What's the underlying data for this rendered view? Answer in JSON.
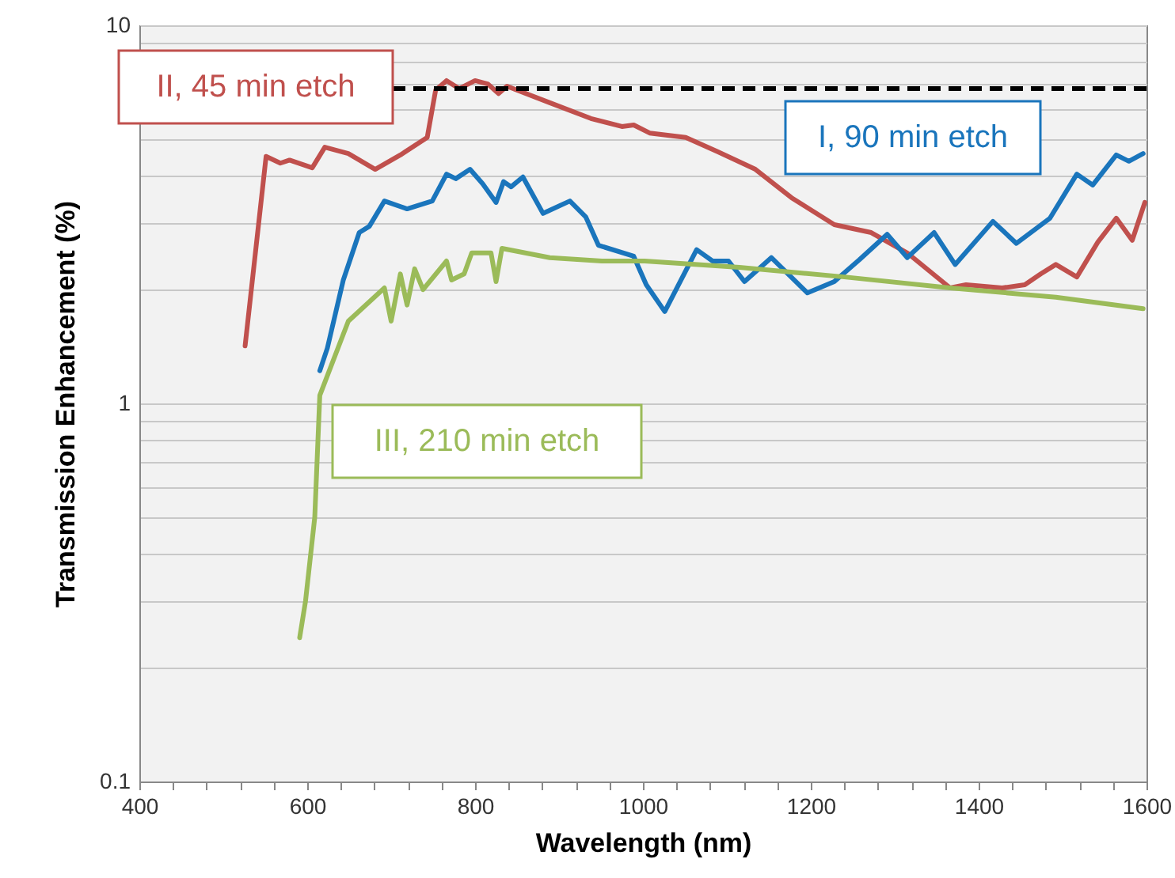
{
  "chart_data": {
    "type": "line",
    "xlabel": "Wavelength (nm)",
    "ylabel": "Transmission Enhancement (%)",
    "log": "y",
    "grid": "y",
    "line_style": "solid",
    "marker": "none",
    "xlim": [
      400,
      1600
    ],
    "xticks": [
      400,
      {
        "value": 440,
        "label": null
      },
      {
        "value": 480,
        "label": null
      },
      {
        "value": 520,
        "label": null
      },
      {
        "value": 560,
        "label": null
      },
      600,
      {
        "value": 640,
        "label": null
      },
      {
        "value": 680,
        "label": null
      },
      {
        "value": 720,
        "label": null
      },
      {
        "value": 760,
        "label": null
      },
      800,
      {
        "value": 840,
        "label": null
      },
      {
        "value": 880,
        "label": null
      },
      {
        "value": 920,
        "label": null
      },
      {
        "value": 960,
        "label": null
      },
      1000,
      {
        "value": 1040,
        "label": null
      },
      {
        "value": 1080,
        "label": null
      },
      {
        "value": 1120,
        "label": null
      },
      {
        "value": 1160,
        "label": null
      },
      1200,
      {
        "value": 1240,
        "label": null
      },
      {
        "value": 1280,
        "label": null
      },
      {
        "value": 1320,
        "label": null
      },
      {
        "value": 1360,
        "label": null
      },
      1400,
      {
        "value": 1440,
        "label": null
      },
      {
        "value": 1480,
        "label": null
      },
      {
        "value": 1520,
        "label": null
      },
      {
        "value": 1560,
        "label": null
      },
      1600
    ],
    "ylim": [
      0.1,
      10
    ],
    "yticks": [
      0.1,
      {
        "value": 0.2,
        "label": null
      },
      {
        "value": 0.3,
        "label": null
      },
      {
        "value": 0.4,
        "label": null
      },
      {
        "value": 0.5,
        "label": null
      },
      {
        "value": 0.6,
        "label": null
      },
      {
        "value": 0.7,
        "label": null
      },
      {
        "value": 0.8,
        "label": null
      },
      {
        "value": 0.9,
        "label": null
      },
      1,
      {
        "value": 2,
        "label": null
      },
      {
        "value": 3,
        "label": null
      },
      {
        "value": 4,
        "label": null
      },
      {
        "value": 5,
        "label": null
      },
      {
        "value": 6,
        "label": null
      },
      {
        "value": 7,
        "label": null
      },
      {
        "value": 8,
        "label": null
      },
      {
        "value": 9,
        "label": null
      },
      10
    ],
    "ref_lines": [
      {
        "axis": "y",
        "value": 6.8,
        "label": null,
        "color": "#000000",
        "line_style": "dashed"
      }
    ],
    "series": [
      {
        "name": "II, 45 min etch",
        "color": "#c0504d",
        "x": [
          526,
          551,
          568,
          579,
          606,
          621,
          649,
          681,
          711,
          743,
          753,
          766,
          781,
          800,
          815,
          828,
          838,
          889,
          938,
          975,
          989,
          1008,
          1051,
          1089,
          1134,
          1177,
          1228,
          1272,
          1315,
          1366,
          1385,
          1428,
          1455,
          1474,
          1492,
          1517,
          1542,
          1564,
          1583,
          1598
        ],
        "values": [
          1.42,
          4.5,
          4.32,
          4.4,
          4.2,
          4.76,
          4.58,
          4.16,
          4.54,
          5.05,
          6.74,
          7.14,
          6.8,
          7.14,
          7.0,
          6.6,
          6.9,
          6.24,
          5.67,
          5.4,
          5.45,
          5.19,
          5.05,
          4.63,
          4.16,
          3.5,
          2.97,
          2.83,
          2.5,
          2.02,
          2.06,
          2.02,
          2.06,
          2.2,
          2.33,
          2.16,
          2.67,
          3.09,
          2.7,
          3.4
        ]
      },
      {
        "name": "I,  90 min etch",
        "color": "#1a75bc",
        "x": [
          615,
          624,
          643,
          662,
          674,
          692,
          719,
          749,
          766,
          777,
          794,
          809,
          825,
          834,
          843,
          857,
          881,
          913,
          932,
          947,
          989,
          1004,
          1026,
          1064,
          1083,
          1102,
          1121,
          1153,
          1196,
          1228,
          1258,
          1291,
          1315,
          1347,
          1372,
          1417,
          1445,
          1485,
          1517,
          1536,
          1564,
          1579,
          1596
        ],
        "values": [
          1.22,
          1.4,
          2.12,
          2.83,
          2.94,
          3.43,
          3.27,
          3.43,
          4.04,
          3.93,
          4.16,
          3.81,
          3.4,
          3.86,
          3.74,
          3.97,
          3.18,
          3.43,
          3.11,
          2.62,
          2.45,
          2.06,
          1.75,
          2.55,
          2.38,
          2.38,
          2.1,
          2.43,
          1.96,
          2.1,
          2.4,
          2.8,
          2.43,
          2.83,
          2.33,
          3.03,
          2.65,
          3.09,
          4.04,
          3.78,
          4.54,
          4.37,
          4.58
        ]
      },
      {
        "name": "III, 210 min etch",
        "color": "#9bbb59",
        "x": [
          591,
          598,
          609,
          615,
          649,
          692,
          700,
          711,
          719,
          728,
          738,
          766,
          772,
          787,
          796,
          819,
          825,
          832,
          889,
          951,
          1002,
          1115,
          1240,
          1366,
          1492,
          1596
        ],
        "values": [
          0.24,
          0.3,
          0.5,
          1.05,
          1.65,
          2.02,
          1.65,
          2.2,
          1.82,
          2.27,
          2.0,
          2.38,
          2.12,
          2.2,
          2.5,
          2.5,
          2.1,
          2.57,
          2.43,
          2.38,
          2.38,
          2.29,
          2.16,
          2.02,
          1.91,
          1.78
        ]
      }
    ]
  }
}
